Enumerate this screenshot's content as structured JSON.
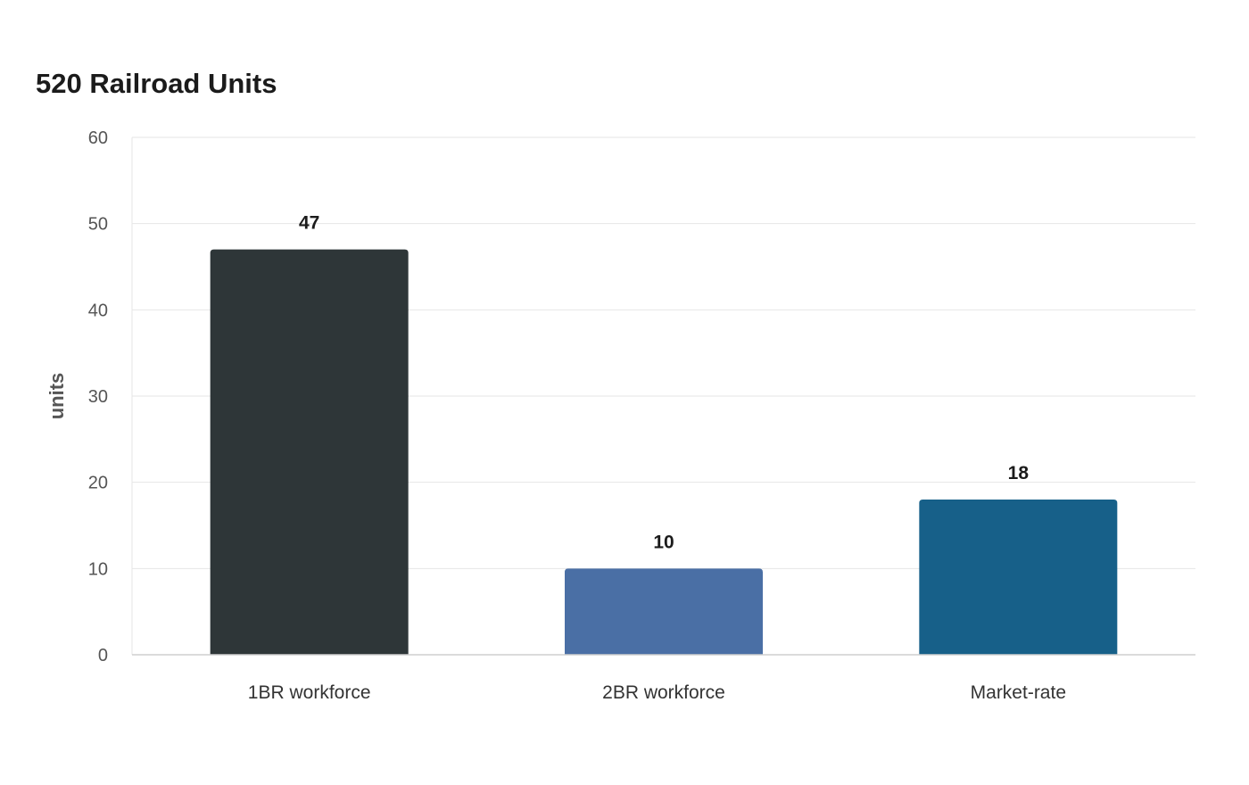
{
  "chart_data": {
    "type": "bar",
    "title": "520 Railroad Units",
    "xlabel": "",
    "ylabel": "units",
    "categories": [
      "1BR workforce",
      "2BR workforce",
      "Market-rate"
    ],
    "values": [
      47,
      10,
      18
    ],
    "colors": [
      "#2e3638",
      "#4a6fa5",
      "#176089"
    ],
    "ylim": [
      0,
      60
    ],
    "yticks": [
      0,
      10,
      20,
      30,
      40,
      50,
      60
    ],
    "grid": true,
    "legend": "none"
  }
}
